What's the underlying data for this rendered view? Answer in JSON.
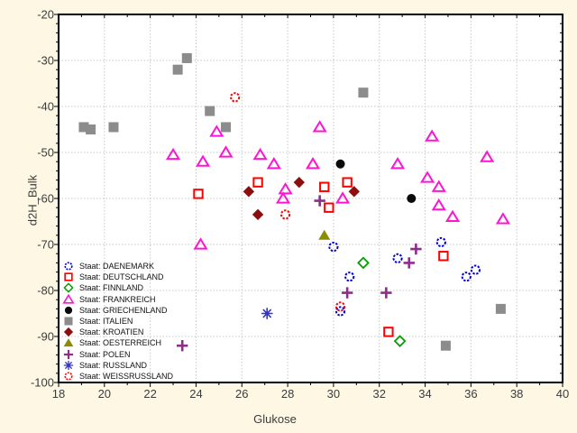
{
  "window": {
    "background_color": "#FDF7E4",
    "plot_background_color": "#FFFFFF"
  },
  "chart_data": {
    "type": "scatter",
    "title": "",
    "xlabel": "Glukose",
    "ylabel": "d2H_Bulk",
    "xlim": [
      18,
      40
    ],
    "ylim": [
      -100,
      -20
    ],
    "grid": true,
    "grid_color": "#C8C8C8",
    "axis_color": "#000000",
    "x_tick_labels": [
      "18",
      "20",
      "22",
      "24",
      "26",
      "28",
      "30",
      "32",
      "34",
      "36",
      "38",
      "40"
    ],
    "y_tick_labels": [
      "-20",
      "-30",
      "-40",
      "-50",
      "-60",
      "-70",
      "-80",
      "-90",
      "-100"
    ],
    "x_tick_values": [
      18,
      20,
      22,
      24,
      26,
      28,
      30,
      32,
      34,
      36,
      38,
      40
    ],
    "y_tick_values": [
      -20,
      -30,
      -40,
      -50,
      -60,
      -70,
      -80,
      -90,
      -100
    ],
    "x_minor_step": 1,
    "y_minor_step": 2,
    "legend_position": "lower-left-inside",
    "series": [
      {
        "name": "Staat: DAENEMARK",
        "marker": "circle-open",
        "color": "#0000CD",
        "points": [
          [
            30.0,
            -70.5
          ],
          [
            30.3,
            -84.5
          ],
          [
            30.7,
            -77
          ],
          [
            32.8,
            -73
          ],
          [
            34.7,
            -69.5
          ],
          [
            35.8,
            -77
          ],
          [
            36.2,
            -75.5
          ]
        ]
      },
      {
        "name": "Staat: DEUTSCHLAND",
        "marker": "square-open",
        "color": "#FF0000",
        "points": [
          [
            24.1,
            -59
          ],
          [
            26.7,
            -56.5
          ],
          [
            29.6,
            -57.5
          ],
          [
            29.8,
            -62
          ],
          [
            30.6,
            -56.5
          ],
          [
            32.4,
            -89
          ],
          [
            34.8,
            -72.5
          ]
        ]
      },
      {
        "name": "Staat: FINNLAND",
        "marker": "diamond-open",
        "color": "#00A000",
        "points": [
          [
            31.3,
            -74
          ],
          [
            32.9,
            -91
          ]
        ]
      },
      {
        "name": "Staat: FRANKREICH",
        "marker": "triangle-open",
        "color": "#FF14D2",
        "points": [
          [
            23.0,
            -50.5
          ],
          [
            24.2,
            -70
          ],
          [
            24.3,
            -52
          ],
          [
            24.9,
            -45.5
          ],
          [
            25.3,
            -50
          ],
          [
            26.8,
            -50.5
          ],
          [
            27.4,
            -52.5
          ],
          [
            27.8,
            -60
          ],
          [
            27.9,
            -58
          ],
          [
            29.1,
            -52.5
          ],
          [
            29.4,
            -44.5
          ],
          [
            30.4,
            -60
          ],
          [
            32.8,
            -52.5
          ],
          [
            34.1,
            -55.5
          ],
          [
            34.3,
            -46.5
          ],
          [
            34.6,
            -57.5
          ],
          [
            34.6,
            -61.5
          ],
          [
            35.2,
            -64
          ],
          [
            36.7,
            -51
          ],
          [
            37.4,
            -64.5
          ]
        ]
      },
      {
        "name": "Staat: GRIECHENLAND",
        "marker": "circle-filled",
        "color": "#0A0A0A",
        "points": [
          [
            30.3,
            -52.5
          ],
          [
            33.4,
            -60
          ]
        ]
      },
      {
        "name": "Staat: ITALIEN",
        "marker": "square-filled",
        "color": "#8C8C8C",
        "points": [
          [
            19.1,
            -44.5
          ],
          [
            19.4,
            -45
          ],
          [
            20.4,
            -44.5
          ],
          [
            23.2,
            -32
          ],
          [
            23.6,
            -29.5
          ],
          [
            24.6,
            -41
          ],
          [
            25.3,
            -44.5
          ],
          [
            31.3,
            -37
          ],
          [
            34.9,
            -92
          ],
          [
            37.3,
            -84
          ]
        ]
      },
      {
        "name": "Staat: KROATIEN",
        "marker": "diamond-filled",
        "color": "#8E0E0E",
        "points": [
          [
            26.3,
            -58.5
          ],
          [
            26.7,
            -63.5
          ],
          [
            28.5,
            -56.5
          ],
          [
            30.9,
            -58.5
          ]
        ]
      },
      {
        "name": "Staat: OESTERREICH",
        "marker": "triangle-filled",
        "color": "#8C8C00",
        "points": [
          [
            29.6,
            -68
          ]
        ]
      },
      {
        "name": "Staat: POLEN",
        "marker": "plus",
        "color": "#8E2D8E",
        "points": [
          [
            23.4,
            -92
          ],
          [
            29.4,
            -60.5
          ],
          [
            30.6,
            -80.5
          ],
          [
            32.3,
            -80.5
          ],
          [
            33.3,
            -74
          ],
          [
            33.6,
            -71
          ]
        ]
      },
      {
        "name": "Staat: RUSSLAND",
        "marker": "asterisk",
        "color": "#3434BE",
        "points": [
          [
            27.1,
            -85
          ]
        ]
      },
      {
        "name": "Staat: WEISSRUSSLAND",
        "marker": "circle-open",
        "color": "#FF0000",
        "points": [
          [
            25.7,
            -38
          ],
          [
            27.9,
            -63.5
          ],
          [
            30.3,
            -83.5
          ]
        ]
      }
    ]
  }
}
